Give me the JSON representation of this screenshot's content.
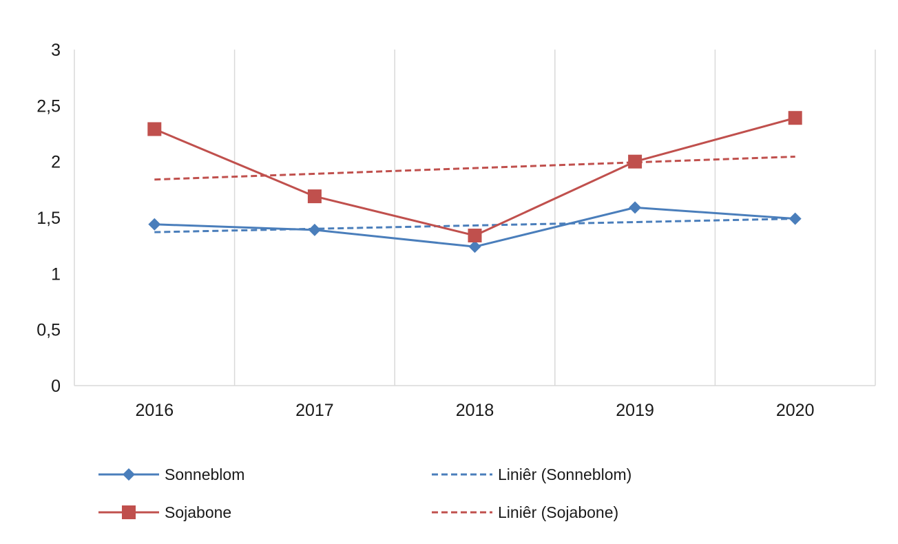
{
  "chart_data": {
    "type": "line",
    "title": "",
    "xlabel": "",
    "ylabel": "",
    "categories": [
      "2016",
      "2017",
      "2018",
      "2019",
      "2020"
    ],
    "ylim": [
      0,
      3
    ],
    "yticks": [
      0,
      0.5,
      1,
      1.5,
      2,
      2.5,
      3
    ],
    "ytick_labels": [
      "0",
      "0,5",
      "1",
      "1,5",
      "2",
      "2,5",
      "3"
    ],
    "grid": "vertical",
    "legend_position": "bottom",
    "series": [
      {
        "name": "Sonneblom",
        "values": [
          1.44,
          1.39,
          1.24,
          1.59,
          1.49
        ],
        "color": "#4a7ebb",
        "marker": "diamond",
        "line_style": "solid"
      },
      {
        "name": "Sojabone",
        "values": [
          2.29,
          1.69,
          1.34,
          2.0,
          2.39
        ],
        "color": "#c0504d",
        "marker": "square",
        "line_style": "solid"
      }
    ],
    "trendlines": [
      {
        "name": "Liniêr (Sonneblom)",
        "of_series": "Sonneblom",
        "type": "linear",
        "color": "#4a7ebb",
        "line_style": "dashed"
      },
      {
        "name": "Liniêr (Sojabone)",
        "of_series": "Sojabone",
        "type": "linear",
        "color": "#c0504d",
        "line_style": "dashed"
      }
    ]
  }
}
